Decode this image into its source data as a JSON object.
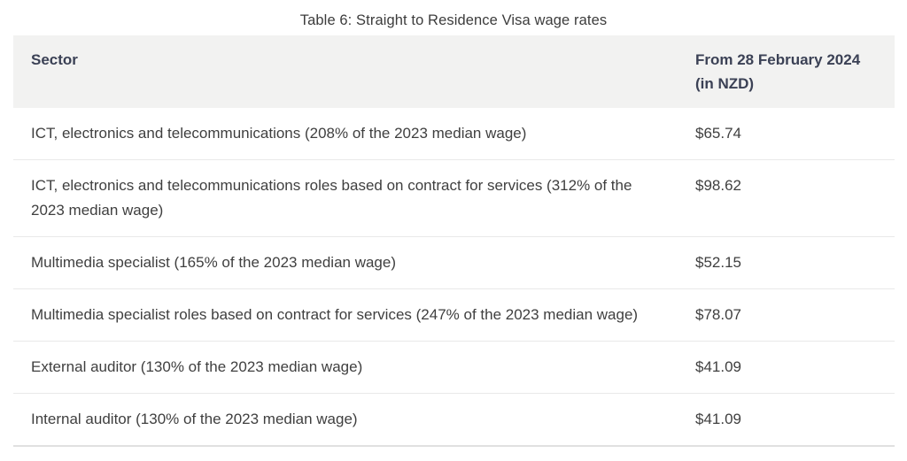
{
  "title": "Table 6: Straight to Residence Visa wage rates",
  "table": {
    "columns": [
      {
        "label": "Sector"
      },
      {
        "label": "From 28 February 2024 (in NZD)"
      }
    ],
    "rows": [
      {
        "sector": "ICT, electronics and telecommunications (208% of the 2023 median wage)",
        "rate": "$65.74"
      },
      {
        "sector": "ICT, electronics and telecommunications roles based on contract for services (312% of the 2023 median wage)",
        "rate": "$98.62"
      },
      {
        "sector": "Multimedia specialist (165% of the 2023 median wage)",
        "rate": "$52.15"
      },
      {
        "sector": "Multimedia specialist roles based on contract for services (247% of the 2023 median wage)",
        "rate": "$78.07"
      },
      {
        "sector": "External auditor (130% of the 2023 median wage)",
        "rate": "$41.09"
      },
      {
        "sector": "Internal auditor (130% of the 2023 median wage)",
        "rate": "$41.09"
      }
    ],
    "colors": {
      "header_bg": "#f2f2f1",
      "header_text": "#3b4155",
      "body_text": "#3f3f3f",
      "row_divider": "#e9e9e9",
      "bottom_border": "#e0e0e0"
    }
  }
}
